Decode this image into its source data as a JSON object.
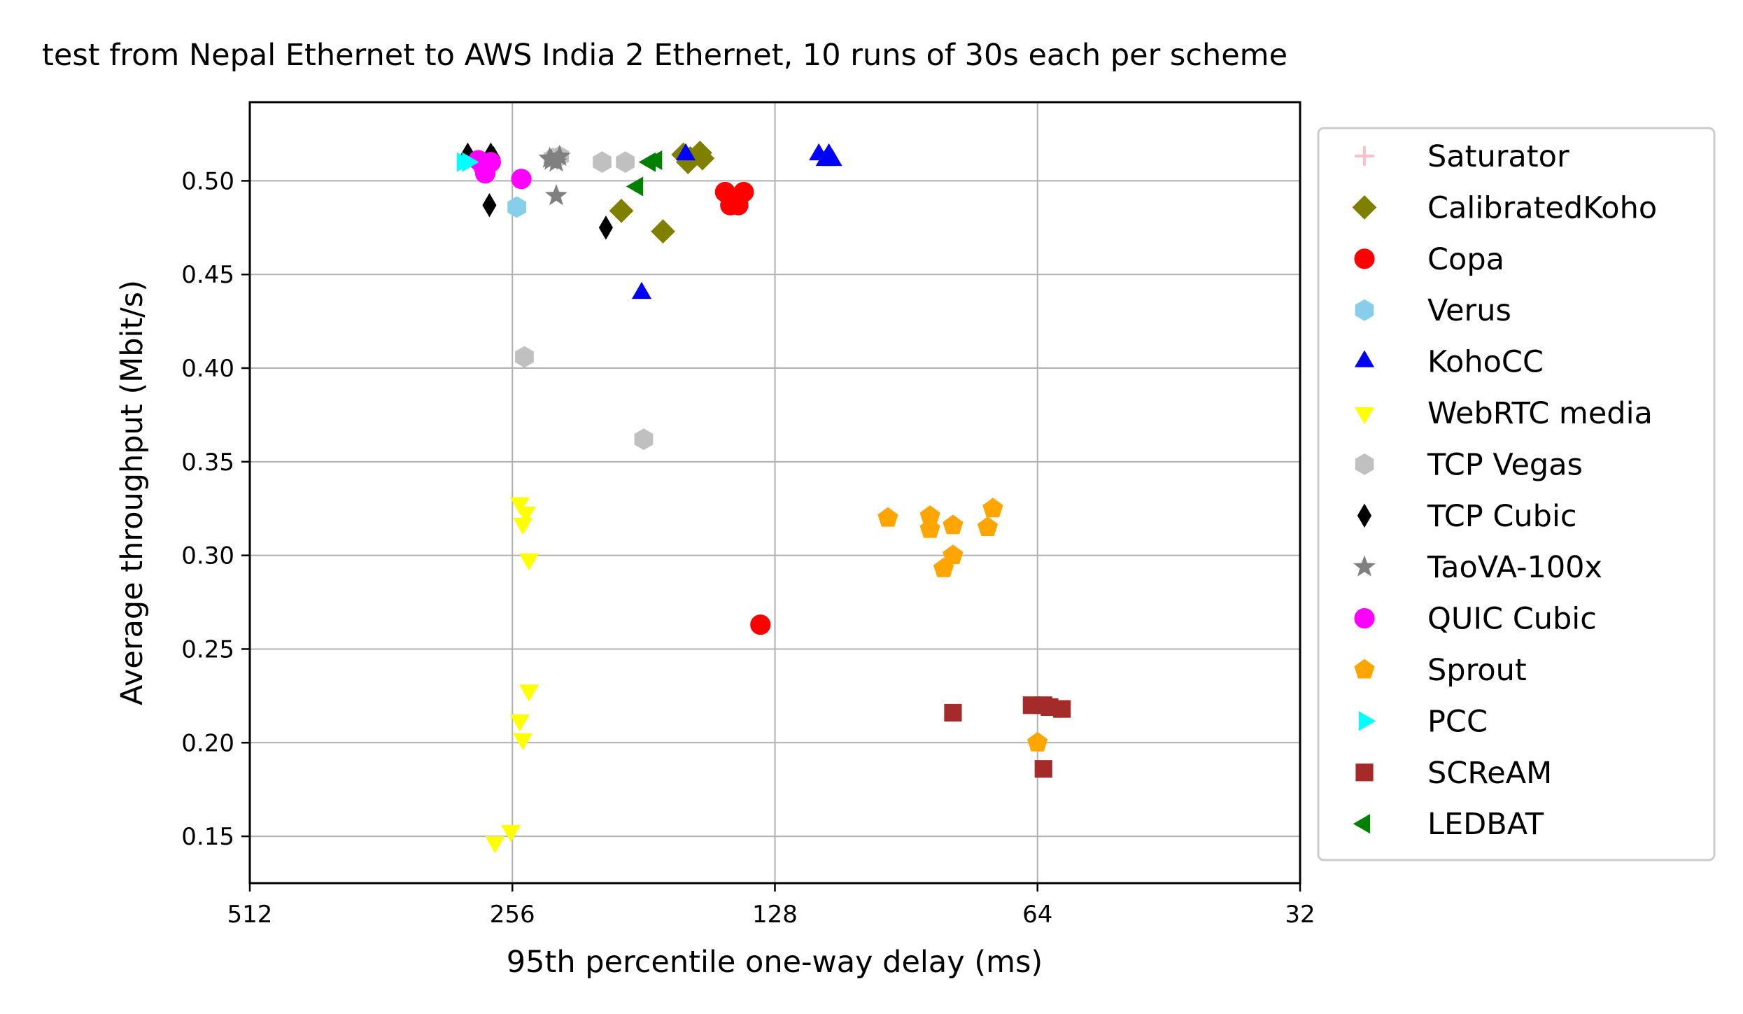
{
  "chart_data": {
    "type": "scatter",
    "title": "test from Nepal Ethernet to AWS India 2 Ethernet, 10 runs of 30s each per scheme",
    "xlabel": "95th percentile one-way delay (ms)",
    "ylabel": "Average throughput (Mbit/s)",
    "x_scale": "log2",
    "x_reversed": true,
    "xlim": [
      512,
      32
    ],
    "ylim": [
      0.125,
      0.542
    ],
    "x_ticks": [
      512,
      256,
      128,
      64,
      32
    ],
    "x_tick_labels": [
      "512",
      "256",
      "128",
      "64",
      "32"
    ],
    "y_ticks": [
      0.15,
      0.2,
      0.25,
      0.3,
      0.35,
      0.4,
      0.45,
      0.5
    ],
    "y_tick_labels": [
      "0.15",
      "0.20",
      "0.25",
      "0.30",
      "0.35",
      "0.40",
      "0.45",
      "0.50"
    ],
    "grid": true,
    "legend_position": "outside-right",
    "series": [
      {
        "name": "Saturator",
        "marker": "plus",
        "color": "#ffc0cb",
        "points": []
      },
      {
        "name": "CalibratedKoho",
        "marker": "diamond",
        "color": "#808000",
        "points": [
          [
            192,
            0.484
          ],
          [
            172,
            0.473
          ],
          [
            163,
            0.514
          ],
          [
            160,
            0.512
          ],
          [
            156,
            0.515
          ],
          [
            155,
            0.512
          ],
          [
            161,
            0.51
          ]
        ]
      },
      {
        "name": "Copa",
        "marker": "circle",
        "color": "#ff0000",
        "points": [
          [
            146,
            0.494
          ],
          [
            144,
            0.487
          ],
          [
            142,
            0.49
          ],
          [
            141,
            0.487
          ],
          [
            139,
            0.494
          ],
          [
            133,
            0.263
          ]
        ]
      },
      {
        "name": "Verus",
        "marker": "hexagon",
        "color": "#87ceeb",
        "points": [
          [
            253,
            0.486
          ]
        ]
      },
      {
        "name": "KohoCC",
        "marker": "triangle-up",
        "color": "#0000ff",
        "points": [
          [
            182,
            0.44
          ],
          [
            162,
            0.514
          ],
          [
            114,
            0.514
          ],
          [
            112,
            0.511
          ],
          [
            111,
            0.514
          ],
          [
            110,
            0.511
          ]
        ]
      },
      {
        "name": "WebRTC media",
        "marker": "triangle-down",
        "color": "#ffff00",
        "points": [
          [
            251,
            0.328
          ],
          [
            247,
            0.323
          ],
          [
            249,
            0.317
          ],
          [
            245,
            0.298
          ],
          [
            245,
            0.228
          ],
          [
            251,
            0.212
          ],
          [
            249,
            0.202
          ],
          [
            257,
            0.153
          ],
          [
            268,
            0.147
          ]
        ]
      },
      {
        "name": "TCP Vegas",
        "marker": "hexagon",
        "color": "#c0c0c0",
        "points": [
          [
            248,
            0.406
          ],
          [
            202,
            0.51
          ],
          [
            190,
            0.51
          ],
          [
            181,
            0.362
          ],
          [
            230,
            0.512
          ],
          [
            226,
            0.513
          ]
        ]
      },
      {
        "name": "TCP Cubic",
        "marker": "thin-diamond",
        "color": "#000000",
        "points": [
          [
            288,
            0.514
          ],
          [
            271,
            0.514
          ],
          [
            269,
            0.512
          ],
          [
            272,
            0.487
          ],
          [
            200,
            0.475
          ]
        ]
      },
      {
        "name": "TaoVA-100x",
        "marker": "star",
        "color": "#808080",
        "points": [
          [
            232,
            0.512
          ],
          [
            228,
            0.51
          ],
          [
            226,
            0.513
          ],
          [
            231,
            0.511
          ],
          [
            228,
            0.492
          ]
        ]
      },
      {
        "name": "QUIC Cubic",
        "marker": "circle",
        "color": "#ff00ff",
        "points": [
          [
            280,
            0.511
          ],
          [
            276,
            0.507
          ],
          [
            275,
            0.504
          ],
          [
            271,
            0.51
          ],
          [
            250,
            0.501
          ]
        ]
      },
      {
        "name": "Sprout",
        "marker": "pentagon",
        "color": "#ffa500",
        "points": [
          [
            95,
            0.32
          ],
          [
            85,
            0.321
          ],
          [
            85,
            0.314
          ],
          [
            82,
            0.293
          ],
          [
            80,
            0.316
          ],
          [
            80,
            0.3
          ],
          [
            73,
            0.315
          ],
          [
            72,
            0.325
          ],
          [
            64,
            0.2
          ]
        ]
      },
      {
        "name": "PCC",
        "marker": "triangle-right",
        "color": "#00ffff",
        "points": [
          [
            292,
            0.51
          ],
          [
            288,
            0.51
          ]
        ]
      },
      {
        "name": "SCReAM",
        "marker": "square",
        "color": "#a52a2a",
        "points": [
          [
            80,
            0.216
          ],
          [
            65,
            0.22
          ],
          [
            63,
            0.22
          ],
          [
            62,
            0.219
          ],
          [
            60,
            0.218
          ],
          [
            63,
            0.186
          ]
        ]
      },
      {
        "name": "LEDBAT",
        "marker": "triangle-left",
        "color": "#008000",
        "points": [
          [
            184,
            0.497
          ],
          [
            178,
            0.51
          ],
          [
            175,
            0.511
          ]
        ]
      }
    ]
  }
}
